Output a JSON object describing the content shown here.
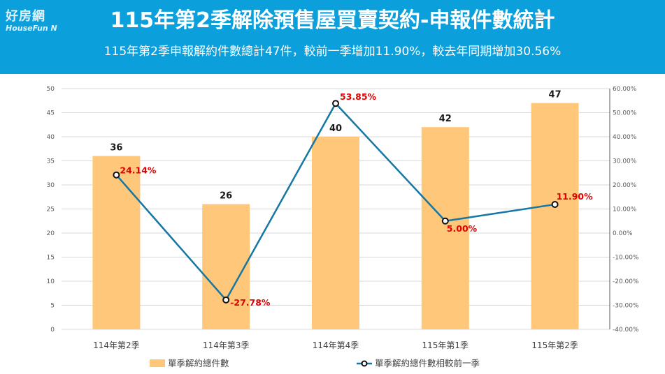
{
  "logo": {
    "line1": "好房網",
    "line2": "HouseFun N"
  },
  "header": {
    "title": "115年第2季解除預售屋買賣契約-申報件數統計",
    "subtitle": "115年第2季申報解約件數總計47件，較前一季增加11.90%，較去年同期增加30.56%"
  },
  "chart_data": {
    "type": "bar",
    "categories": [
      "114年第2季",
      "114年第3季",
      "114年第4季",
      "115年第1季",
      "115年第2季"
    ],
    "series": [
      {
        "name": "單季解約總件數",
        "type": "bar",
        "axis": "left",
        "values": [
          36,
          26,
          40,
          42,
          47
        ],
        "labels": [
          "36",
          "26",
          "40",
          "42",
          "47"
        ]
      },
      {
        "name": "單季解約總件數相較前一季",
        "type": "line",
        "axis": "right",
        "values": [
          24.14,
          -27.78,
          53.85,
          5.0,
          11.9
        ],
        "labels": [
          "24.14%",
          "-27.78%",
          "53.85%",
          "5.00%",
          "11.90%"
        ]
      }
    ],
    "left_axis": {
      "ylim": [
        0,
        50
      ],
      "ticks": [
        "0",
        "5",
        "10",
        "15",
        "20",
        "25",
        "30",
        "35",
        "40",
        "45",
        "50"
      ]
    },
    "right_axis": {
      "ylim": [
        -40,
        60
      ],
      "ticks": [
        "-40.00%",
        "-30.00%",
        "-20.00%",
        "-10.00%",
        "0.00%",
        "10.00%",
        "20.00%",
        "30.00%",
        "40.00%",
        "50.00%",
        "60.00%"
      ]
    },
    "grid": true,
    "legend": "bottom",
    "colors": {
      "bar": "#ffc77a",
      "line": "#1577a3",
      "percent_label": "#e00000",
      "header": "#0b9fdc"
    }
  }
}
